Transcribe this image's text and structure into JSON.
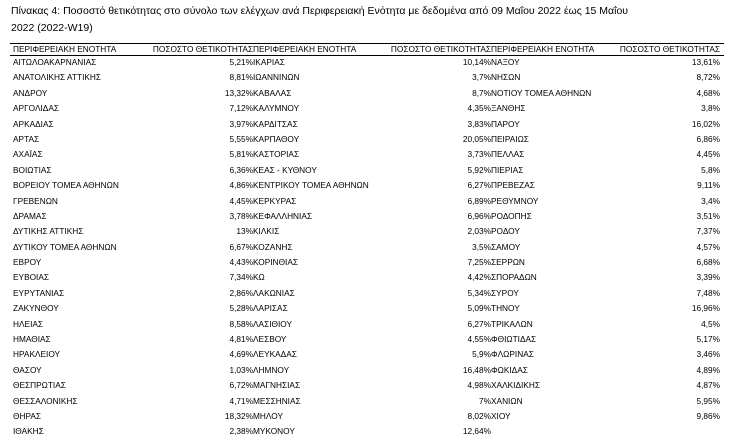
{
  "caption": {
    "line1": "Πίνακας 4:  Ποσοστό θετικότητας στο σύνολο των ελέγχων ανά Περιφερειακή Ενότητα με δεδομένα από 09 Μαΐου 2022 έως 15 Μαΐου",
    "line2": "2022 (2022-W19)"
  },
  "table": {
    "columns": [
      {
        "header_name": "ΠΕΡΙΦΕΡΕΙΑΚΗ ΕΝΟΤΗΤΑ",
        "header_value": "ΠΟΣΟΣΤΟ ΘΕΤΙΚΟΤΗΤΑΣ",
        "rows": [
          {
            "name": "ΑΙΤΩΛΟΑΚΑΡΝΑΝΙΑΣ",
            "value": "5,21%"
          },
          {
            "name": "ΑΝΑΤΟΛΙΚΗΣ ΑΤΤΙΚΗΣ",
            "value": "8,81%"
          },
          {
            "name": "ΑΝΔΡΟΥ",
            "value": "13,32%"
          },
          {
            "name": "ΑΡΓΟΛΙΔΑΣ",
            "value": "7,12%"
          },
          {
            "name": "ΑΡΚΑΔΙΑΣ",
            "value": "3,97%"
          },
          {
            "name": "ΑΡΤΑΣ",
            "value": "5,55%"
          },
          {
            "name": "ΑΧΑΪΑΣ",
            "value": "5,81%"
          },
          {
            "name": "ΒΟΙΩΤΙΑΣ",
            "value": "6,36%"
          },
          {
            "name": "ΒΟΡΕΙΟΥ ΤΟΜΕΑ ΑΘΗΝΩΝ",
            "value": "4,86%"
          },
          {
            "name": "ΓΡΕΒΕΝΩΝ",
            "value": "4,45%"
          },
          {
            "name": "ΔΡΑΜΑΣ",
            "value": "3,78%"
          },
          {
            "name": "ΔΥΤΙΚΗΣ ΑΤΤΙΚΗΣ",
            "value": "13%"
          },
          {
            "name": "ΔΥΤΙΚΟΥ ΤΟΜΕΑ ΑΘΗΝΩΝ",
            "value": "6,67%"
          },
          {
            "name": "ΕΒΡΟΥ",
            "value": "4,43%"
          },
          {
            "name": "ΕΥΒΟΙΑΣ",
            "value": "7,34%"
          },
          {
            "name": "ΕΥΡΥΤΑΝΙΑΣ",
            "value": "2,86%"
          },
          {
            "name": "ΖΑΚΥΝΘΟΥ",
            "value": "5,28%"
          },
          {
            "name": "ΗΛΕΙΑΣ",
            "value": "8,58%"
          },
          {
            "name": "ΗΜΑΘΙΑΣ",
            "value": "4,81%"
          },
          {
            "name": "ΗΡΑΚΛΕΙΟΥ",
            "value": "4,69%"
          },
          {
            "name": "ΘΑΣΟΥ",
            "value": "1,03%"
          },
          {
            "name": "ΘΕΣΠΡΩΤΙΑΣ",
            "value": "6,72%"
          },
          {
            "name": "ΘΕΣΣΑΛΟΝΙΚΗΣ",
            "value": "4,71%"
          },
          {
            "name": "ΘΗΡΑΣ",
            "value": "18,32%"
          },
          {
            "name": "ΙΘΑΚΗΣ",
            "value": "2,38%"
          }
        ]
      },
      {
        "header_name": "ΠΕΡΙΦΕΡΕΙΑΚΗ ΕΝΟΤΗΤΑ",
        "header_value": "ΠΟΣΟΣΤΟ ΘΕΤΙΚΟΤΗΤΑΣ",
        "rows": [
          {
            "name": "ΙΚΑΡΙΑΣ",
            "value": "10,14%"
          },
          {
            "name": "ΙΩΑΝΝΙΝΩΝ",
            "value": "3,7%"
          },
          {
            "name": "ΚΑΒΑΛΑΣ",
            "value": "8,7%"
          },
          {
            "name": "ΚΑΛΥΜΝΟΥ",
            "value": "4,35%"
          },
          {
            "name": "ΚΑΡΔΙΤΣΑΣ",
            "value": "3,83%"
          },
          {
            "name": "ΚΑΡΠΑΘΟΥ",
            "value": "20,05%"
          },
          {
            "name": "ΚΑΣΤΟΡΙΑΣ",
            "value": "3,73%"
          },
          {
            "name": "ΚΕΑΣ - ΚΥΘΝΟΥ",
            "value": "5,92%"
          },
          {
            "name": "ΚΕΝΤΡΙΚΟΥ ΤΟΜΕΑ ΑΘΗΝΩΝ",
            "value": "6,27%"
          },
          {
            "name": "ΚΕΡΚΥΡΑΣ",
            "value": "6,89%"
          },
          {
            "name": "ΚΕΦΑΛΛΗΝΙΑΣ",
            "value": "6,96%"
          },
          {
            "name": "ΚΙΛΚΙΣ",
            "value": "2,03%"
          },
          {
            "name": "ΚΟΖΑΝΗΣ",
            "value": "3,5%"
          },
          {
            "name": "ΚΟΡΙΝΘΙΑΣ",
            "value": "7,25%"
          },
          {
            "name": "ΚΩ",
            "value": "4,42%"
          },
          {
            "name": "ΛΑΚΩΝΙΑΣ",
            "value": "5,34%"
          },
          {
            "name": "ΛΑΡΙΣΑΣ",
            "value": "5,09%"
          },
          {
            "name": "ΛΑΣΙΘΙΟΥ",
            "value": "6,27%"
          },
          {
            "name": "ΛΕΣΒΟΥ",
            "value": "4,55%"
          },
          {
            "name": "ΛΕΥΚΑΔΑΣ",
            "value": "5,9%"
          },
          {
            "name": "ΛΗΜΝΟΥ",
            "value": "16,48%"
          },
          {
            "name": "ΜΑΓΝΗΣΙΑΣ",
            "value": "4,98%"
          },
          {
            "name": "ΜΕΣΣΗΝΙΑΣ",
            "value": "7%"
          },
          {
            "name": "ΜΗΛΟΥ",
            "value": "8,02%"
          },
          {
            "name": "ΜΥΚΟΝΟΥ",
            "value": "12,64%"
          }
        ]
      },
      {
        "header_name": "ΠΕΡΙΦΕΡΕΙΑΚΗ ΕΝΟΤΗΤΑ",
        "header_value": "ΠΟΣΟΣΤΟ ΘΕΤΙΚΟΤΗΤΑΣ",
        "rows": [
          {
            "name": "ΝΑΞΟΥ",
            "value": "13,61%"
          },
          {
            "name": "ΝΗΣΩΝ",
            "value": "8,72%"
          },
          {
            "name": "ΝΟΤΙΟΥ ΤΟΜΕΑ ΑΘΗΝΩΝ",
            "value": "4,68%"
          },
          {
            "name": "ΞΑΝΘΗΣ",
            "value": "3,8%"
          },
          {
            "name": "ΠΑΡΟΥ",
            "value": "16,02%"
          },
          {
            "name": "ΠΕΙΡΑΙΩΣ",
            "value": "6,86%"
          },
          {
            "name": "ΠΕΛΛΑΣ",
            "value": "4,45%"
          },
          {
            "name": "ΠΙΕΡΙΑΣ",
            "value": "5,8%"
          },
          {
            "name": "ΠΡΕΒΕΖΑΣ",
            "value": "9,11%"
          },
          {
            "name": "ΡΕΘΥΜΝΟΥ",
            "value": "3,4%"
          },
          {
            "name": "ΡΟΔΟΠΗΣ",
            "value": "3,51%"
          },
          {
            "name": "ΡΟΔΟΥ",
            "value": "7,37%"
          },
          {
            "name": "ΣΑΜΟΥ",
            "value": "4,57%"
          },
          {
            "name": "ΣΕΡΡΩΝ",
            "value": "6,68%"
          },
          {
            "name": "ΣΠΟΡΑΔΩΝ",
            "value": "3,39%"
          },
          {
            "name": "ΣΥΡΟΥ",
            "value": "7,48%"
          },
          {
            "name": "ΤΗΝΟΥ",
            "value": "16,96%"
          },
          {
            "name": "ΤΡΙΚΑΛΩΝ",
            "value": "4,5%"
          },
          {
            "name": "ΦΘΙΩΤΙΔΑΣ",
            "value": "5,17%"
          },
          {
            "name": "ΦΛΩΡΙΝΑΣ",
            "value": "3,46%"
          },
          {
            "name": "ΦΩΚΙΔΑΣ",
            "value": "4,89%"
          },
          {
            "name": "ΧΑΛΚΙΔΙΚΗΣ",
            "value": "4,87%"
          },
          {
            "name": "ΧΑΝΙΩΝ",
            "value": "5,95%"
          },
          {
            "name": "ΧΙΟΥ",
            "value": "9,86%"
          }
        ]
      }
    ]
  }
}
